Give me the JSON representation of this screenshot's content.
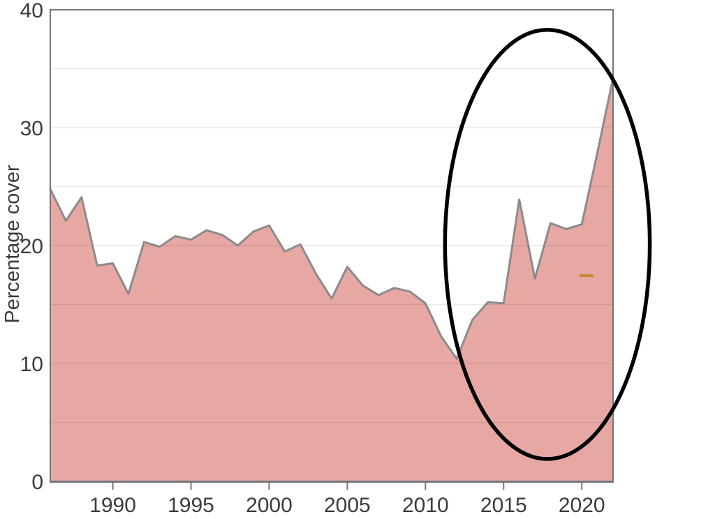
{
  "chart_data": {
    "type": "area",
    "title": "",
    "xlabel": "",
    "ylabel": "Percentage cover",
    "x": [
      1986,
      1987,
      1988,
      1989,
      1990,
      1991,
      1992,
      1993,
      1994,
      1995,
      1996,
      1997,
      1998,
      1999,
      2000,
      2001,
      2002,
      2003,
      2004,
      2005,
      2006,
      2007,
      2008,
      2009,
      2010,
      2011,
      2012,
      2013,
      2014,
      2015,
      2016,
      2017,
      2018,
      2019,
      2020,
      2021,
      2022
    ],
    "values": [
      24.8,
      22.1,
      24.1,
      18.3,
      18.5,
      15.9,
      20.3,
      19.9,
      20.8,
      20.5,
      21.3,
      20.9,
      20.0,
      21.2,
      21.7,
      19.5,
      20.1,
      17.6,
      15.5,
      18.2,
      16.6,
      15.8,
      16.4,
      16.1,
      15.1,
      12.3,
      10.4,
      13.7,
      15.2,
      15.1,
      23.9,
      17.2,
      21.9,
      21.4,
      21.8,
      27.9,
      34.2
    ],
    "xlim": [
      1986,
      2022
    ],
    "ylim": [
      0,
      40
    ],
    "xticks": [
      1990,
      1995,
      2000,
      2005,
      2010,
      2015,
      2020
    ],
    "yticks": [
      0,
      10,
      20,
      30,
      40
    ],
    "grid": "horizontal every 5 units",
    "grid_step": 5,
    "legend": "none",
    "annotations": {
      "ellipse": {
        "meaning": "highlight of recent recovery period",
        "cx_year": 2017.8,
        "cy_value": 20.1,
        "rx_years": 6.55,
        "ry_values": 18.2,
        "stroke": "#000000",
        "stroke_width": 5.5
      },
      "dash": {
        "meaning": "short horizontal highlight mark",
        "x1_year": 2019.85,
        "x2_year": 2020.75,
        "value": 17.45,
        "stroke": "#c8872e",
        "stroke_width": 4
      }
    },
    "colors": {
      "area_fill": "#e7a8a4",
      "line": "#8b8b8b",
      "gridline": "rgba(0,0,0,0.085)",
      "frame": "#75757d",
      "text": "#3b3b3b",
      "background": "#ffffff"
    }
  }
}
